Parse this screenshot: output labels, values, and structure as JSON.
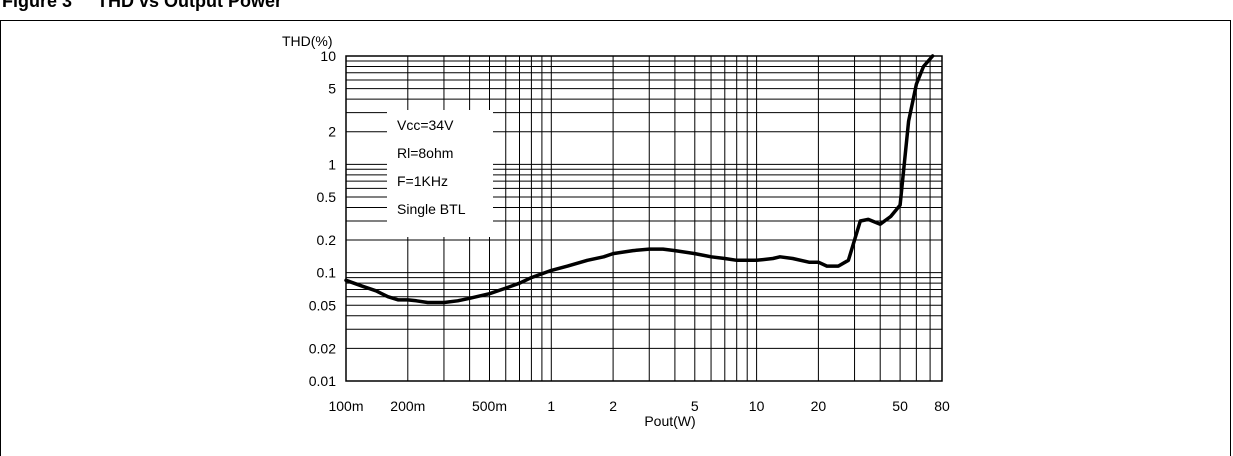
{
  "figure": {
    "header": "Figure 3     THD vs Output Power"
  },
  "chart_data": {
    "type": "line",
    "ylabel": "THD(%)",
    "xlabel": "Pout(W)",
    "x_scale": "log",
    "y_scale": "log",
    "xlim": [
      0.1,
      80
    ],
    "ylim": [
      0.01,
      10
    ],
    "grid": true,
    "x_ticks": [
      {
        "value": 0.1,
        "label": "100m"
      },
      {
        "value": 0.2,
        "label": "200m"
      },
      {
        "value": 0.5,
        "label": "500m"
      },
      {
        "value": 1,
        "label": "1"
      },
      {
        "value": 2,
        "label": "2"
      },
      {
        "value": 5,
        "label": "5"
      },
      {
        "value": 10,
        "label": "10"
      },
      {
        "value": 20,
        "label": "20"
      },
      {
        "value": 50,
        "label": "50"
      },
      {
        "value": 80,
        "label": "80"
      }
    ],
    "y_ticks": [
      {
        "value": 10,
        "label": "10"
      },
      {
        "value": 5,
        "label": "5"
      },
      {
        "value": 2,
        "label": "2"
      },
      {
        "value": 1,
        "label": "1"
      },
      {
        "value": 0.5,
        "label": "0.5"
      },
      {
        "value": 0.2,
        "label": "0.2"
      },
      {
        "value": 0.1,
        "label": "0.1"
      },
      {
        "value": 0.05,
        "label": "0.05"
      },
      {
        "value": 0.02,
        "label": "0.02"
      },
      {
        "value": 0.01,
        "label": "0.01"
      }
    ],
    "annotations": [
      "Vcc=34V",
      "Rl=8ohm",
      "F=1KHz",
      "Single BTL"
    ],
    "series": [
      {
        "color": "#000000",
        "x": [
          0.1,
          0.12,
          0.14,
          0.16,
          0.18,
          0.2,
          0.22,
          0.25,
          0.3,
          0.35,
          0.4,
          0.5,
          0.6,
          0.7,
          0.8,
          1,
          1.2,
          1.5,
          1.8,
          2,
          2.5,
          3,
          3.5,
          4,
          5,
          6,
          7,
          8,
          10,
          12,
          13,
          15,
          18,
          20,
          22,
          25,
          28,
          32,
          35,
          40,
          45,
          50,
          55,
          60,
          65,
          72
        ],
        "y": [
          0.085,
          0.075,
          0.068,
          0.06,
          0.056,
          0.056,
          0.055,
          0.053,
          0.053,
          0.055,
          0.058,
          0.064,
          0.072,
          0.08,
          0.09,
          0.105,
          0.115,
          0.13,
          0.14,
          0.15,
          0.16,
          0.165,
          0.165,
          0.16,
          0.15,
          0.14,
          0.135,
          0.13,
          0.13,
          0.135,
          0.14,
          0.135,
          0.125,
          0.125,
          0.115,
          0.115,
          0.13,
          0.3,
          0.31,
          0.28,
          0.33,
          0.42,
          2.5,
          5.5,
          8,
          10
        ]
      }
    ]
  }
}
